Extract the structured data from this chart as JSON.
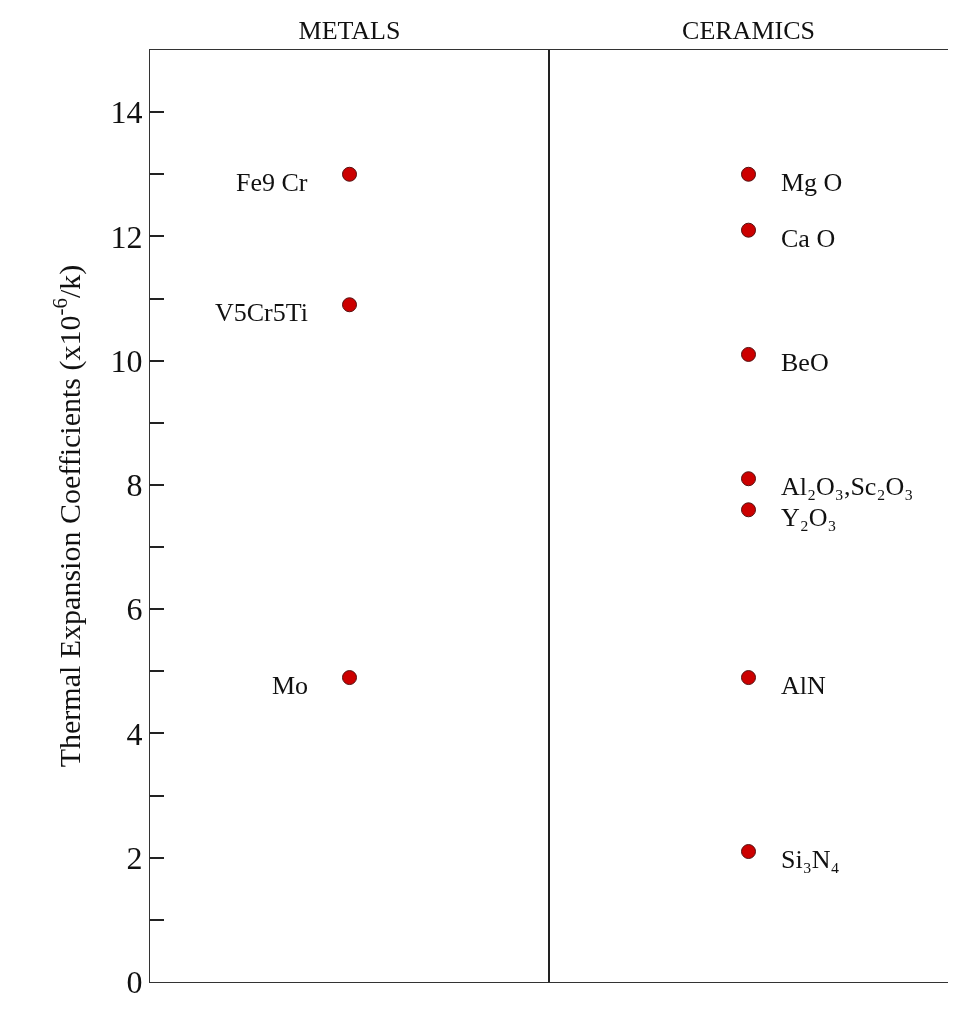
{
  "chart_data": {
    "type": "scatter",
    "ylabel": "Thermal Expansion Coefficients (x10$^{-6}$/k)",
    "categories": [
      "METALS",
      "CERAMICS"
    ],
    "series": [
      {
        "color": "#cc0000",
        "x": [
          "METALS",
          "METALS",
          "METALS",
          "CERAMICS",
          "CERAMICS",
          "CERAMICS",
          "CERAMICS",
          "CERAMICS",
          "CERAMICS",
          "CERAMICS"
        ],
        "values": [
          13,
          10.9,
          4.9,
          13,
          12.1,
          10.1,
          8.1,
          7.6,
          4.9,
          2.1
        ]
      }
    ],
    "annotations": [
      {
        "text": "Fe9 Cr",
        "x": "METALS",
        "y": 13
      },
      {
        "text": "V5Cr5Ti",
        "x": "METALS",
        "y": 10.9
      },
      {
        "text": "Mo",
        "x": "METALS",
        "y": 4.9
      },
      {
        "text": "Mg O",
        "x": "CERAMICS",
        "y": 13
      },
      {
        "text": "Ca O",
        "x": "CERAMICS",
        "y": 12.1
      },
      {
        "text": "BeO",
        "x": "CERAMICS",
        "y": 10.1
      },
      {
        "text": "Al₂O₃,Sc₂O₃",
        "x": "CERAMICS",
        "y": 8.1
      },
      {
        "text": "Y₂O₃",
        "x": "CERAMICS",
        "y": 7.6
      },
      {
        "text": "AlN",
        "x": "CERAMICS",
        "y": 4.9
      },
      {
        "text": "Si₃N₄",
        "x": "CERAMICS",
        "y": 2.1
      }
    ],
    "ylim": [
      0,
      15
    ],
    "yticks": [
      0,
      {
        "value": 1,
        "label": null
      },
      2,
      {
        "value": 3,
        "label": null
      },
      4,
      {
        "value": 5,
        "label": null
      },
      6,
      {
        "value": 7,
        "label": null
      },
      8,
      {
        "value": 9,
        "label": null
      },
      10,
      {
        "value": 11,
        "label": null
      },
      12,
      {
        "value": 13,
        "label": null
      },
      14
    ],
    "grid": "x",
    "marker": "circle"
  }
}
